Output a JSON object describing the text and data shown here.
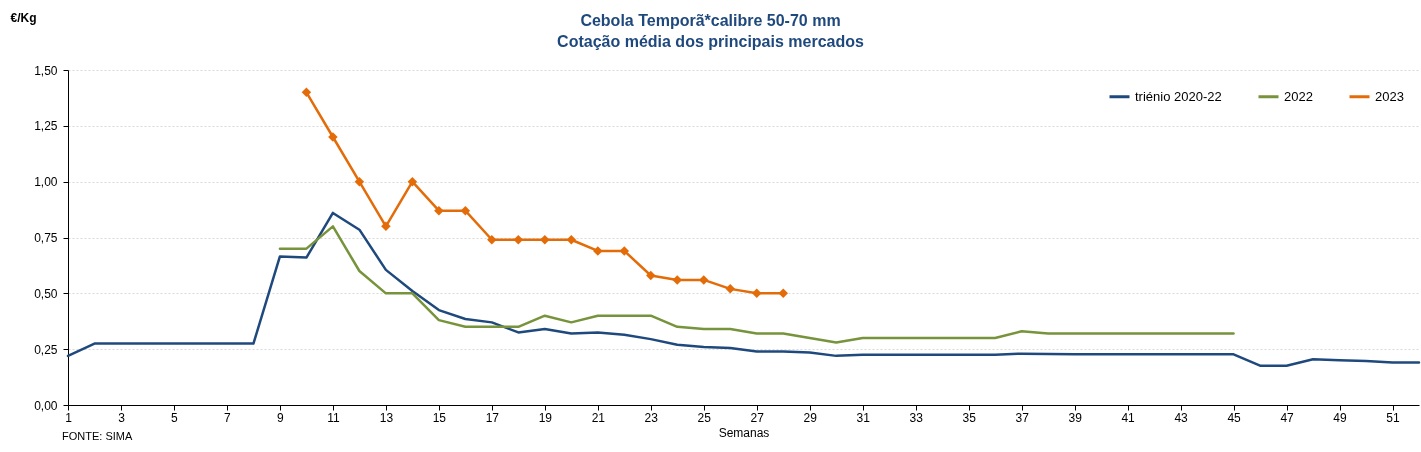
{
  "chart_data": {
    "type": "line",
    "title": [
      "Cebola Temporã*calibre 50-70 mm",
      "Cotação média dos principais mercados"
    ],
    "xlabel": "Semanas",
    "ylabel": "€/Kg",
    "x": [
      1,
      2,
      3,
      4,
      5,
      6,
      7,
      8,
      9,
      10,
      11,
      12,
      13,
      14,
      15,
      16,
      17,
      18,
      19,
      20,
      21,
      22,
      23,
      24,
      25,
      26,
      27,
      28,
      29,
      30,
      31,
      32,
      33,
      34,
      35,
      36,
      37,
      38,
      39,
      40,
      41,
      42,
      43,
      44,
      45,
      46,
      47,
      48,
      49,
      50,
      51,
      52
    ],
    "xlim": [
      1,
      52
    ],
    "xticks": [
      1,
      3,
      5,
      7,
      9,
      11,
      13,
      15,
      17,
      19,
      21,
      23,
      25,
      27,
      29,
      31,
      33,
      35,
      37,
      39,
      41,
      43,
      45,
      47,
      49,
      51
    ],
    "ylim": [
      0,
      1.5
    ],
    "yticks": [
      {
        "value": 0,
        "label": "0,00"
      },
      {
        "value": 0.25,
        "label": "0,25"
      },
      {
        "value": 0.5,
        "label": "0,50"
      },
      {
        "value": 0.75,
        "label": "0,75"
      },
      {
        "value": 1,
        "label": "1,00"
      },
      {
        "value": 1.25,
        "label": "1,25"
      },
      {
        "value": 1.5,
        "label": "1,50"
      }
    ],
    "grid": "y",
    "legend": "top right",
    "line_style": "solid",
    "series": [
      {
        "name": "triénio 2020-22",
        "color": "#1f497d",
        "marker": "none",
        "values": [
          0.22,
          0.275,
          0.275,
          0.275,
          0.275,
          0.275,
          0.275,
          0.275,
          0.665,
          0.66,
          0.86,
          0.785,
          0.605,
          0.51,
          0.425,
          0.385,
          0.37,
          0.325,
          0.34,
          0.32,
          0.325,
          0.315,
          0.295,
          0.27,
          0.26,
          0.255,
          0.24,
          0.24,
          0.235,
          0.22,
          0.225,
          0.225,
          0.225,
          0.225,
          0.225,
          0.225,
          0.23,
          0.228,
          0.227,
          0.227,
          0.227,
          0.227,
          0.227,
          0.227,
          0.227,
          0.176,
          0.176,
          0.205,
          0.2,
          0.197,
          0.19,
          0.19
        ]
      },
      {
        "name": "2022",
        "color": "#77933c",
        "marker": "none",
        "values": [
          null,
          null,
          null,
          null,
          null,
          null,
          null,
          null,
          0.7,
          0.7,
          0.8,
          0.6,
          0.5,
          0.5,
          0.38,
          0.35,
          0.35,
          0.35,
          0.4,
          0.37,
          0.4,
          0.4,
          0.4,
          0.35,
          0.34,
          0.34,
          0.32,
          0.32,
          0.3,
          0.28,
          0.3,
          0.3,
          0.3,
          0.3,
          0.3,
          0.3,
          0.33,
          0.32,
          0.32,
          0.32,
          0.32,
          0.32,
          0.32,
          0.32,
          0.32,
          null,
          null,
          null,
          null,
          null,
          null,
          null
        ]
      },
      {
        "name": "2023",
        "color": "#e36c09",
        "marker": "diamond",
        "values": [
          null,
          null,
          null,
          null,
          null,
          null,
          null,
          null,
          null,
          1.4,
          1.2,
          1.0,
          0.8,
          1.0,
          0.87,
          0.87,
          0.74,
          0.74,
          0.74,
          0.74,
          0.69,
          0.69,
          0.58,
          0.56,
          0.56,
          0.52,
          0.5,
          0.5,
          null,
          null,
          null,
          null,
          null,
          null,
          null,
          null,
          null,
          null,
          null,
          null,
          null,
          null,
          null,
          null,
          null,
          null,
          null,
          null,
          null,
          null,
          null,
          null
        ]
      }
    ],
    "annotations": [
      "FONTE: SIMA"
    ]
  }
}
